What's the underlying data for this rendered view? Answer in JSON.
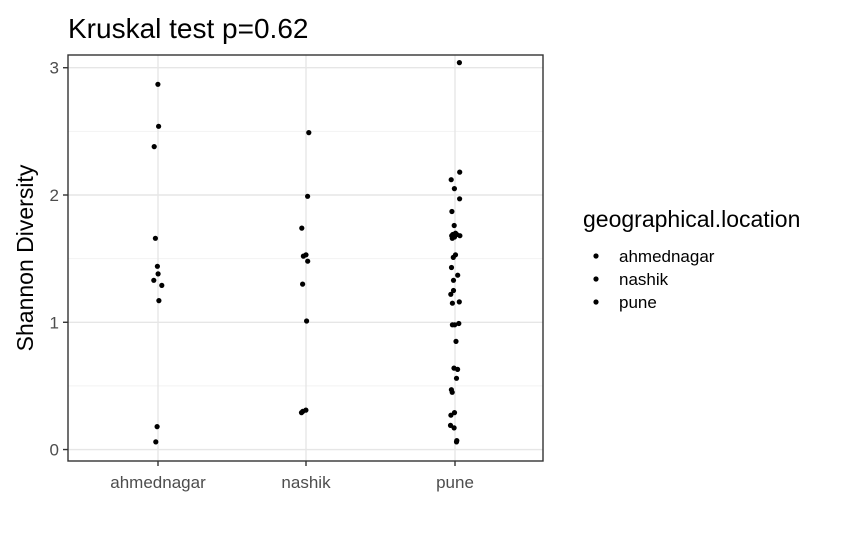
{
  "chart_data": {
    "type": "scatter",
    "title": "Kruskal test p=0.62",
    "xlabel": "",
    "ylabel": "Shannon Diversity",
    "categories": [
      "ahmednagar",
      "nashik",
      "pune"
    ],
    "ylim": [
      -0.09,
      3.1
    ],
    "yticks": [
      "0",
      "1",
      "2",
      "3"
    ],
    "grid": true,
    "legend_title": "geographical.location",
    "legend_position": "right",
    "point_color": "#000000",
    "panel_border_color": "#333333",
    "grid_major_color": "#e6e6e6",
    "grid_minor_color": "#f2f2f2",
    "series": [
      {
        "name": "ahmednagar",
        "points": [
          {
            "x": "ahmednagar",
            "y": 2.87
          },
          {
            "x": "ahmednagar",
            "y": 2.54
          },
          {
            "x": "ahmednagar",
            "y": 2.38
          },
          {
            "x": "ahmednagar",
            "y": 1.66
          },
          {
            "x": "ahmednagar",
            "y": 1.44
          },
          {
            "x": "ahmednagar",
            "y": 1.38
          },
          {
            "x": "ahmednagar",
            "y": 1.33
          },
          {
            "x": "ahmednagar",
            "y": 1.29
          },
          {
            "x": "ahmednagar",
            "y": 1.17
          },
          {
            "x": "ahmednagar",
            "y": 0.18
          },
          {
            "x": "ahmednagar",
            "y": 0.06
          }
        ]
      },
      {
        "name": "nashik",
        "points": [
          {
            "x": "nashik",
            "y": 2.49
          },
          {
            "x": "nashik",
            "y": 1.99
          },
          {
            "x": "nashik",
            "y": 1.74
          },
          {
            "x": "nashik",
            "y": 1.53
          },
          {
            "x": "nashik",
            "y": 1.52
          },
          {
            "x": "nashik",
            "y": 1.48
          },
          {
            "x": "nashik",
            "y": 1.3
          },
          {
            "x": "nashik",
            "y": 1.01
          },
          {
            "x": "nashik",
            "y": 0.31
          },
          {
            "x": "nashik",
            "y": 0.3
          },
          {
            "x": "nashik",
            "y": 0.29
          }
        ]
      },
      {
        "name": "pune",
        "points": [
          {
            "x": "pune",
            "y": 3.04
          },
          {
            "x": "pune",
            "y": 2.18
          },
          {
            "x": "pune",
            "y": 2.12
          },
          {
            "x": "pune",
            "y": 2.05
          },
          {
            "x": "pune",
            "y": 1.97
          },
          {
            "x": "pune",
            "y": 1.87
          },
          {
            "x": "pune",
            "y": 1.76
          },
          {
            "x": "pune",
            "y": 1.7
          },
          {
            "x": "pune",
            "y": 1.69
          },
          {
            "x": "pune",
            "y": 1.69
          },
          {
            "x": "pune",
            "y": 1.68
          },
          {
            "x": "pune",
            "y": 1.68
          },
          {
            "x": "pune",
            "y": 1.67
          },
          {
            "x": "pune",
            "y": 1.66
          },
          {
            "x": "pune",
            "y": 1.53
          },
          {
            "x": "pune",
            "y": 1.51
          },
          {
            "x": "pune",
            "y": 1.43
          },
          {
            "x": "pune",
            "y": 1.37
          },
          {
            "x": "pune",
            "y": 1.33
          },
          {
            "x": "pune",
            "y": 1.25
          },
          {
            "x": "pune",
            "y": 1.22
          },
          {
            "x": "pune",
            "y": 1.16
          },
          {
            "x": "pune",
            "y": 1.15
          },
          {
            "x": "pune",
            "y": 0.99
          },
          {
            "x": "pune",
            "y": 0.98
          },
          {
            "x": "pune",
            "y": 0.98
          },
          {
            "x": "pune",
            "y": 0.85
          },
          {
            "x": "pune",
            "y": 0.64
          },
          {
            "x": "pune",
            "y": 0.63
          },
          {
            "x": "pune",
            "y": 0.56
          },
          {
            "x": "pune",
            "y": 0.47
          },
          {
            "x": "pune",
            "y": 0.45
          },
          {
            "x": "pune",
            "y": 0.29
          },
          {
            "x": "pune",
            "y": 0.27
          },
          {
            "x": "pune",
            "y": 0.19
          },
          {
            "x": "pune",
            "y": 0.17
          },
          {
            "x": "pune",
            "y": 0.07
          },
          {
            "x": "pune",
            "y": 0.06
          }
        ]
      }
    ]
  }
}
